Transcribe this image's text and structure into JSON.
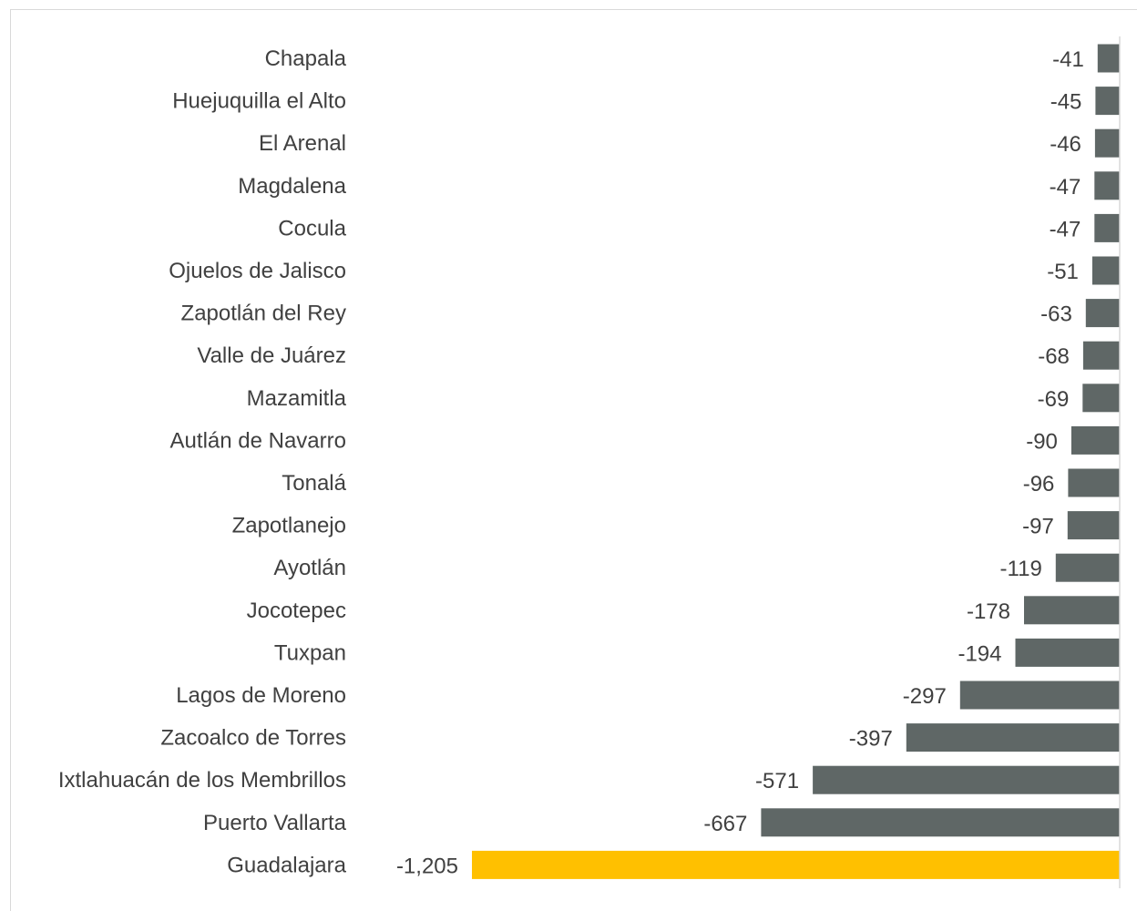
{
  "chart_data": {
    "type": "bar",
    "orientation": "horizontal",
    "title": "",
    "xlabel": "",
    "ylabel": "",
    "grid": false,
    "legend": "none",
    "xlim": [
      -1205,
      0
    ],
    "categories": [
      "Chapala",
      "Huejuquilla el Alto",
      "El Arenal",
      "Magdalena",
      "Cocula",
      "Ojuelos de Jalisco",
      "Zapotlán del Rey",
      "Valle de Juárez",
      "Mazamitla",
      "Autlán de Navarro",
      "Tonalá",
      "Zapotlanejo",
      "Ayotlán",
      "Jocotepec",
      "Tuxpan",
      "Lagos de Moreno",
      "Zacoalco de Torres",
      "Ixtlahuacán de los Membrillos",
      "Puerto Vallarta",
      "Guadalajara"
    ],
    "values": [
      -41,
      -45,
      -46,
      -47,
      -47,
      -51,
      -63,
      -68,
      -69,
      -90,
      -96,
      -97,
      -119,
      -178,
      -194,
      -297,
      -397,
      -571,
      -667,
      -1205
    ],
    "value_labels": [
      "-41",
      "-45",
      "-46",
      "-47",
      "-47",
      "-51",
      "-63",
      "-68",
      "-69",
      "-90",
      "-96",
      "-97",
      "-119",
      "-178",
      "-194",
      "-297",
      "-397",
      "-571",
      "-667",
      "-1,205"
    ],
    "highlight_index": 19,
    "colors": {
      "bar": "#5f6766",
      "highlight": "#ffc000",
      "axis": "#d9d9d9",
      "label": "#404040"
    }
  }
}
